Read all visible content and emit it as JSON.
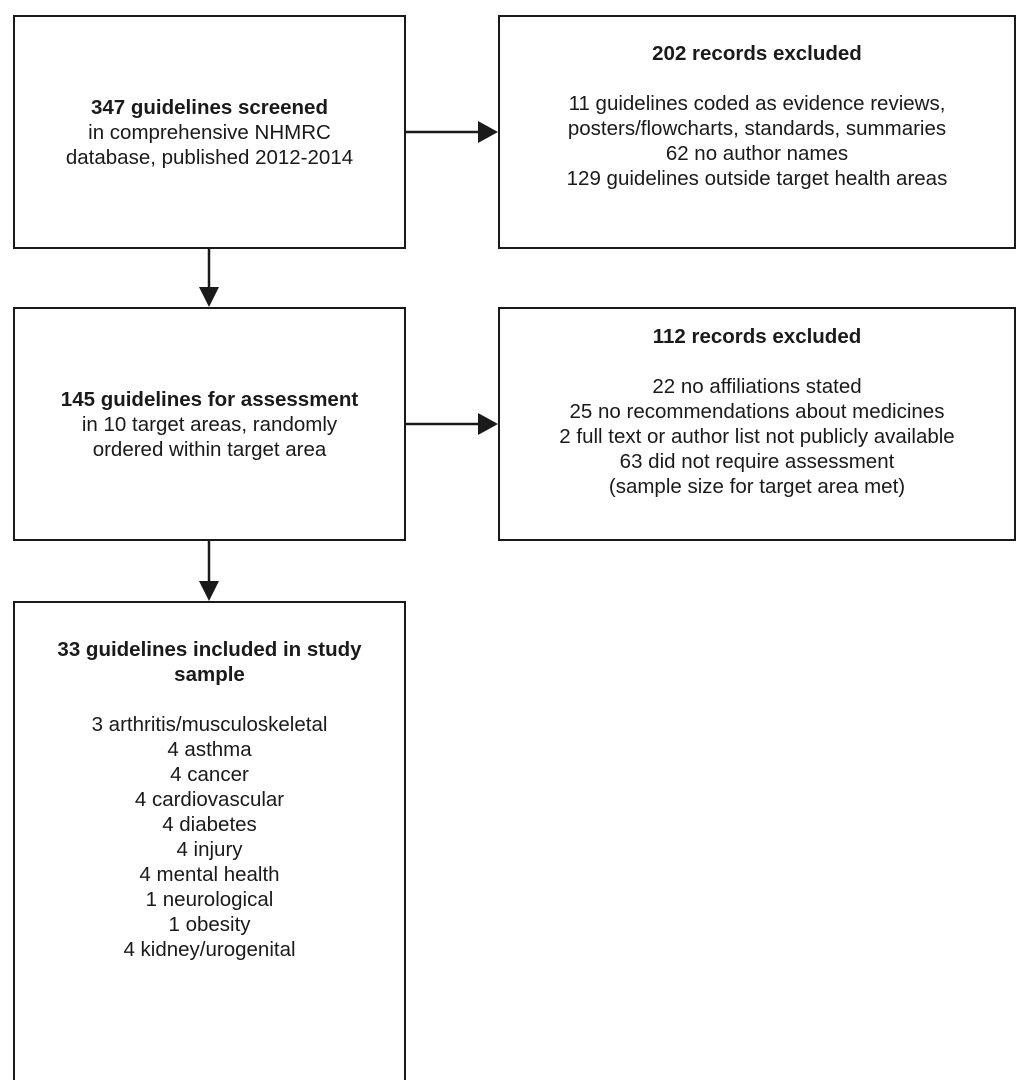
{
  "screened": {
    "title": "347 guidelines screened",
    "lines": [
      "in comprehensive NHMRC",
      "database, published 2012-2014"
    ]
  },
  "excluded_1": {
    "title": "202 records excluded",
    "lines": [
      "11 guidelines coded as evidence reviews,",
      "posters/flowcharts, standards, summaries",
      "62 no author names",
      "129 guidelines outside target health areas"
    ]
  },
  "assessment": {
    "title": "145 guidelines for assessment",
    "lines": [
      "in 10 target areas, randomly",
      "ordered within target area"
    ]
  },
  "excluded_2": {
    "title": "112 records excluded",
    "lines": [
      "22 no affiliations stated",
      "25 no recommendations about medicines",
      "2 full text or author list not publicly available",
      "63 did not require assessment",
      "(sample size for target area met)"
    ]
  },
  "included": {
    "title_lines": [
      "33 guidelines included in study",
      "sample"
    ],
    "lines": [
      "3 arthritis/musculoskeletal",
      "4 asthma",
      "4 cancer",
      "4 cardiovascular",
      "4 diabetes",
      "4 injury",
      "4 mental health",
      "1 neurological",
      "1 obesity",
      "4 kidney/urogenital"
    ]
  }
}
